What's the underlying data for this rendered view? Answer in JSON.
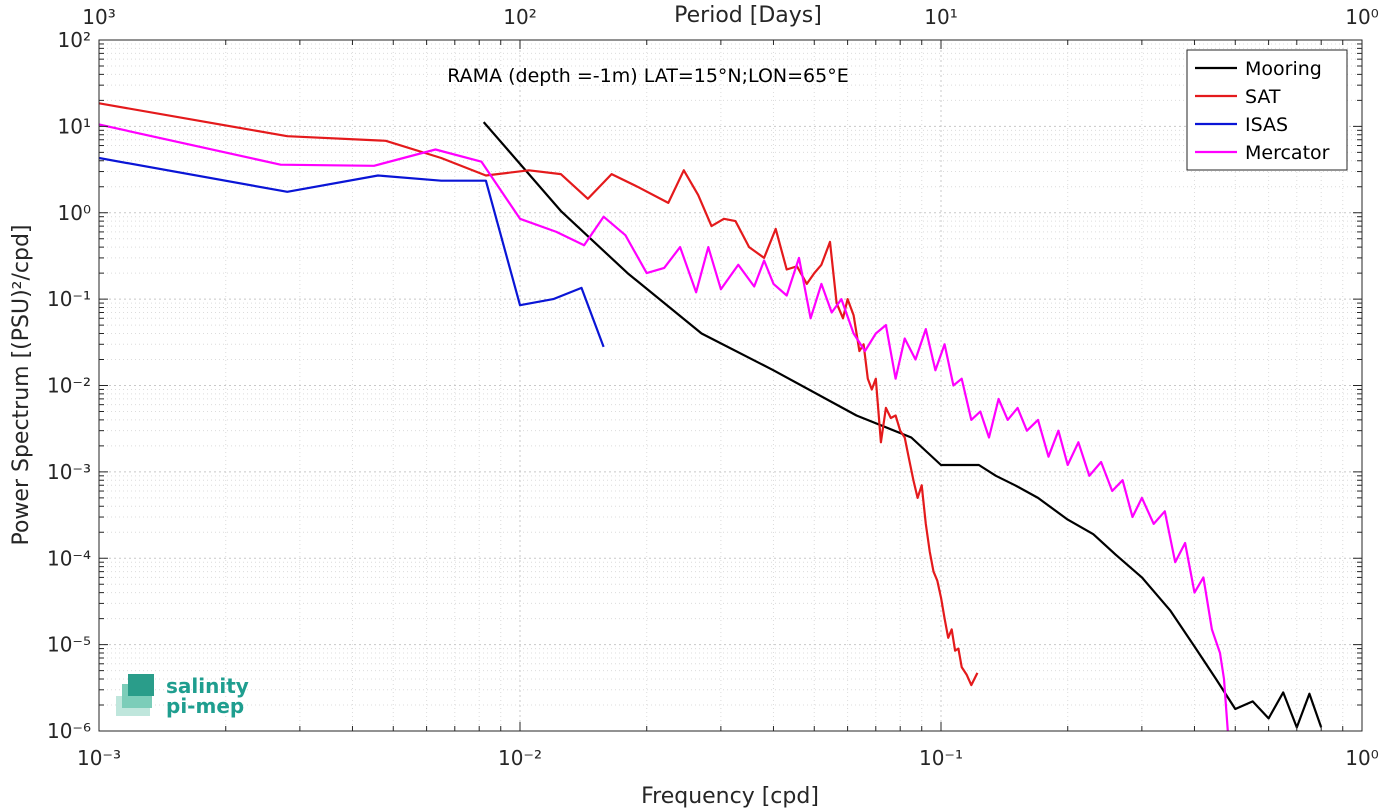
{
  "chart_data": {
    "type": "line",
    "xscale": "log",
    "yscale": "log",
    "xlim": [
      0.001,
      1
    ],
    "ylim": [
      1e-06,
      100
    ],
    "xlabel": "Frequency [cpd]",
    "ylabel": "Power Spectrum [(PSU)²/cpd]",
    "x2label": "Period [Days]",
    "x2ticks": [
      "10³",
      "10²",
      "10¹",
      "10⁰"
    ],
    "xticks": [
      "10⁻³",
      "10⁻²",
      "10⁻¹",
      "10⁰"
    ],
    "yticks": [
      "10⁻⁶",
      "10⁻⁵",
      "10⁻⁴",
      "10⁻³",
      "10⁻²",
      "10⁻¹",
      "10⁰",
      "10¹",
      "10²"
    ],
    "annotation": "RAMA (depth =-1m) LAT=15°N;LON=65°E",
    "grid": true,
    "legend_position": "top-right",
    "series": [
      {
        "name": "Mooring",
        "color": "#000000",
        "x": [
          0.0082,
          0.0125,
          0.018,
          0.027,
          0.04,
          0.063,
          0.085,
          0.1,
          0.123,
          0.135,
          0.15,
          0.17,
          0.2,
          0.23,
          0.26,
          0.3,
          0.35,
          0.4,
          0.45,
          0.5,
          0.55,
          0.6,
          0.65,
          0.7,
          0.75,
          0.8
        ],
        "y": [
          11.2,
          1.05,
          0.2,
          0.04,
          0.015,
          0.0045,
          0.0025,
          0.0012,
          0.0012,
          0.0009,
          0.0007,
          0.0005,
          0.00028,
          0.00019,
          0.00011,
          6e-05,
          2.5e-05,
          9.5e-06,
          4e-06,
          1.8e-06,
          2.2e-06,
          1.4e-06,
          2.8e-06,
          1.1e-06,
          2.7e-06,
          1.1e-06
        ]
      },
      {
        "name": "SAT",
        "color": "#e41a1c",
        "x": [
          0.001,
          0.0028,
          0.0048,
          0.0065,
          0.0083,
          0.0105,
          0.0125,
          0.0145,
          0.0165,
          0.019,
          0.0225,
          0.0245,
          0.0265,
          0.0285,
          0.0305,
          0.0325,
          0.035,
          0.038,
          0.0405,
          0.043,
          0.0455,
          0.048,
          0.05,
          0.052,
          0.0545,
          0.0565,
          0.0585,
          0.06,
          0.062,
          0.064,
          0.0655,
          0.067,
          0.0685,
          0.07,
          0.072,
          0.074,
          0.076,
          0.078,
          0.08,
          0.082,
          0.084,
          0.086,
          0.088,
          0.09,
          0.092,
          0.094,
          0.096,
          0.098,
          0.1,
          0.102,
          0.104,
          0.106,
          0.108,
          0.11,
          0.112,
          0.115,
          0.118,
          0.122
        ],
        "y": [
          18.5,
          7.7,
          6.8,
          4.3,
          2.7,
          3.1,
          2.8,
          1.45,
          2.8,
          2.0,
          1.3,
          3.1,
          1.6,
          0.7,
          0.85,
          0.8,
          0.4,
          0.3,
          0.65,
          0.22,
          0.24,
          0.15,
          0.2,
          0.25,
          0.46,
          0.09,
          0.06,
          0.1,
          0.065,
          0.025,
          0.03,
          0.012,
          0.009,
          0.012,
          0.0022,
          0.0055,
          0.0042,
          0.0045,
          0.003,
          0.0025,
          0.0014,
          0.0008,
          0.0005,
          0.0007,
          0.00025,
          0.00012,
          7e-05,
          5.5e-05,
          3.5e-05,
          2e-05,
          1.2e-05,
          1.5e-05,
          8.5e-06,
          9e-06,
          5.5e-06,
          4.5e-06,
          3.4e-06,
          4.7e-06
        ]
      },
      {
        "name": "ISAS",
        "color": "#0a15d6",
        "x": [
          0.001,
          0.0028,
          0.0046,
          0.0065,
          0.0083,
          0.01,
          0.012,
          0.014,
          0.0158
        ],
        "y": [
          4.3,
          1.75,
          2.7,
          2.35,
          2.35,
          0.085,
          0.1,
          0.135,
          0.028
        ]
      },
      {
        "name": "Mercator",
        "color": "#ff00ff",
        "x": [
          0.001,
          0.0027,
          0.0045,
          0.0063,
          0.0081,
          0.01,
          0.0122,
          0.0142,
          0.0158,
          0.0178,
          0.02,
          0.022,
          0.024,
          0.0262,
          0.028,
          0.03,
          0.033,
          0.036,
          0.038,
          0.04,
          0.043,
          0.046,
          0.049,
          0.052,
          0.055,
          0.058,
          0.062,
          0.066,
          0.07,
          0.074,
          0.078,
          0.082,
          0.087,
          0.092,
          0.097,
          0.102,
          0.107,
          0.112,
          0.118,
          0.124,
          0.13,
          0.137,
          0.144,
          0.152,
          0.16,
          0.17,
          0.18,
          0.19,
          0.2,
          0.212,
          0.225,
          0.24,
          0.255,
          0.27,
          0.285,
          0.3,
          0.32,
          0.34,
          0.36,
          0.38,
          0.4,
          0.42,
          0.44,
          0.46,
          0.47,
          0.48
        ],
        "y": [
          10.5,
          3.6,
          3.5,
          5.4,
          3.9,
          0.85,
          0.6,
          0.42,
          0.9,
          0.55,
          0.2,
          0.23,
          0.4,
          0.12,
          0.4,
          0.13,
          0.25,
          0.14,
          0.28,
          0.15,
          0.11,
          0.3,
          0.06,
          0.15,
          0.07,
          0.1,
          0.04,
          0.025,
          0.04,
          0.05,
          0.012,
          0.035,
          0.02,
          0.045,
          0.015,
          0.03,
          0.01,
          0.012,
          0.004,
          0.005,
          0.0025,
          0.007,
          0.004,
          0.0055,
          0.003,
          0.004,
          0.0015,
          0.003,
          0.0012,
          0.0022,
          0.0009,
          0.0013,
          0.0006,
          0.0008,
          0.0003,
          0.0005,
          0.00025,
          0.00035,
          9e-05,
          0.00015,
          4e-05,
          6e-05,
          1.5e-05,
          8e-06,
          4e-06,
          1e-06
        ]
      }
    ]
  },
  "logo": {
    "line1": "salinity",
    "line2": "pi-mep"
  }
}
